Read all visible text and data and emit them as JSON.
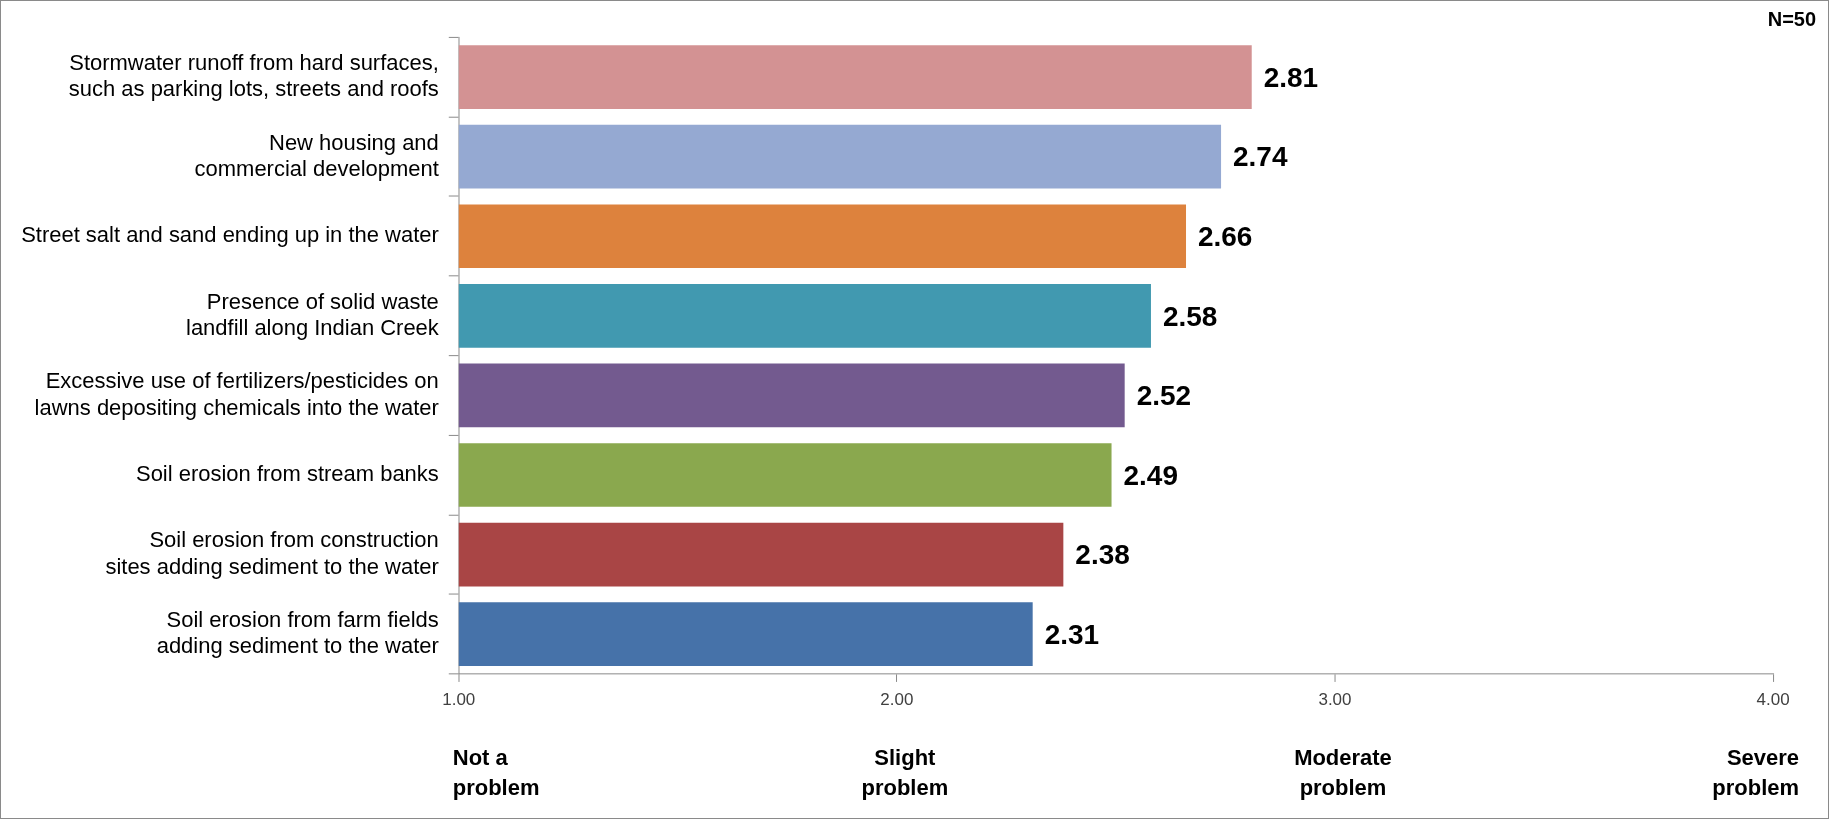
{
  "chart_data": {
    "type": "bar",
    "orientation": "horizontal",
    "categories": [
      "Stormwater runoff from hard surfaces,\nsuch as parking lots, streets and roofs",
      "New housing and\ncommercial development",
      "Street salt and sand ending up in the water",
      "Presence of solid waste\nlandfill along Indian Creek",
      "Excessive use of fertilizers/pesticides on\nlawns depositing chemicals into the water",
      "Soil erosion from stream banks",
      "Soil erosion from construction\nsites adding sediment to the water",
      "Soil erosion from farm fields\nadding sediment to the water"
    ],
    "values": [
      2.81,
      2.74,
      2.66,
      2.58,
      2.52,
      2.49,
      2.38,
      2.31
    ],
    "colors": [
      "#d39293",
      "#95a9d2",
      "#dd823d",
      "#4199b0",
      "#735a8f",
      "#8aa84e",
      "#a94545",
      "#4672a9"
    ],
    "data_labels": true,
    "xlim": [
      1,
      4
    ],
    "xticks": [
      {
        "value": 1,
        "label": "1.00"
      },
      {
        "value": 2,
        "label": "2.00"
      },
      {
        "value": 3,
        "label": "3.00"
      },
      {
        "value": 4,
        "label": "4.00"
      }
    ],
    "grid": false,
    "legend": false,
    "annotations": [
      "N=50",
      "Not a\nproblem",
      "Slight\nproblem",
      "Moderate\nproblem",
      "Severe\nproblem"
    ]
  }
}
